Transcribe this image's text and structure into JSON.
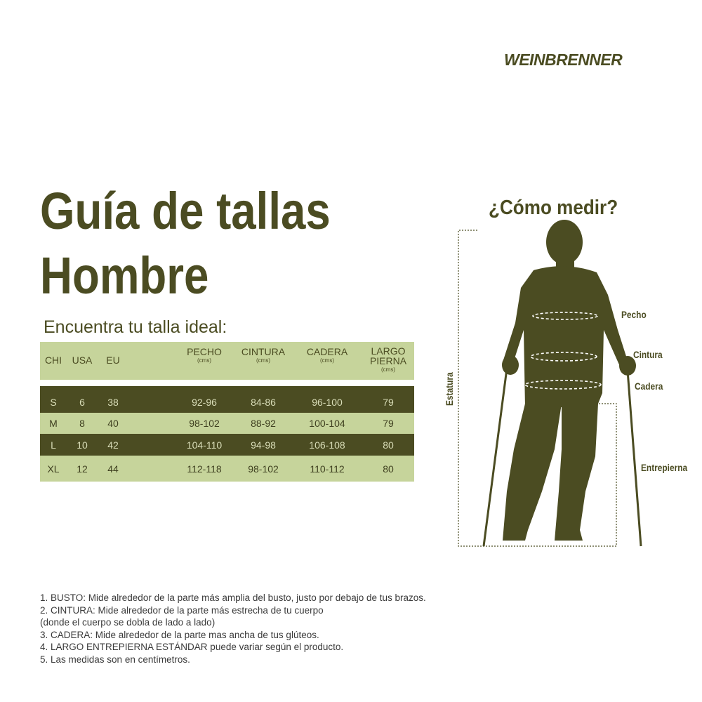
{
  "brand": "WEINBRENNER",
  "title": [
    "Guía de tallas",
    "Hombre"
  ],
  "subtitle": "Encuentra tu talla ideal:",
  "table": {
    "headers": [
      {
        "label": "CHI"
      },
      {
        "label": "USA"
      },
      {
        "label": "EU"
      },
      {
        "label": "PECHO",
        "unit": "(cms)"
      },
      {
        "label": "CINTURA",
        "unit": "(cms)"
      },
      {
        "label": "CADERA",
        "unit": "(cms)"
      },
      {
        "label": "LARGO PIERNA",
        "unit": "(cms)"
      }
    ],
    "rows": [
      [
        "S",
        "6",
        "38",
        "92-96",
        "84-86",
        "96-100",
        "79"
      ],
      [
        "M",
        "8",
        "40",
        "98-102",
        "88-92",
        "100-104",
        "79"
      ],
      [
        "L",
        "10",
        "42",
        "104-110",
        "94-98",
        "106-108",
        "80"
      ],
      [
        "XL",
        "12",
        "44",
        "112-118",
        "98-102",
        "110-112",
        "80"
      ]
    ]
  },
  "figure": {
    "heading": "¿Cómo medir?",
    "labels": {
      "pecho": "Pecho",
      "cintura": "Cintura",
      "cadera": "Cadera",
      "entrepierna": "Entrepierna",
      "estatura": "Estatura"
    }
  },
  "notes": [
    "1. BUSTO: Mide alrededor de la parte más amplia del busto, justo por debajo de tus brazos.",
    "2. CINTURA: Mide alrededor de la parte más estrecha de tu cuerpo",
    "(donde el cuerpo se dobla de lado a lado)",
    "3. CADERA: Mide alrededor de la parte mas ancha de tus glúteos.",
    "4. LARGO ENTREPIERNA ESTÁNDAR puede variar según el producto.",
    "5. Las medidas son en centímetros."
  ]
}
